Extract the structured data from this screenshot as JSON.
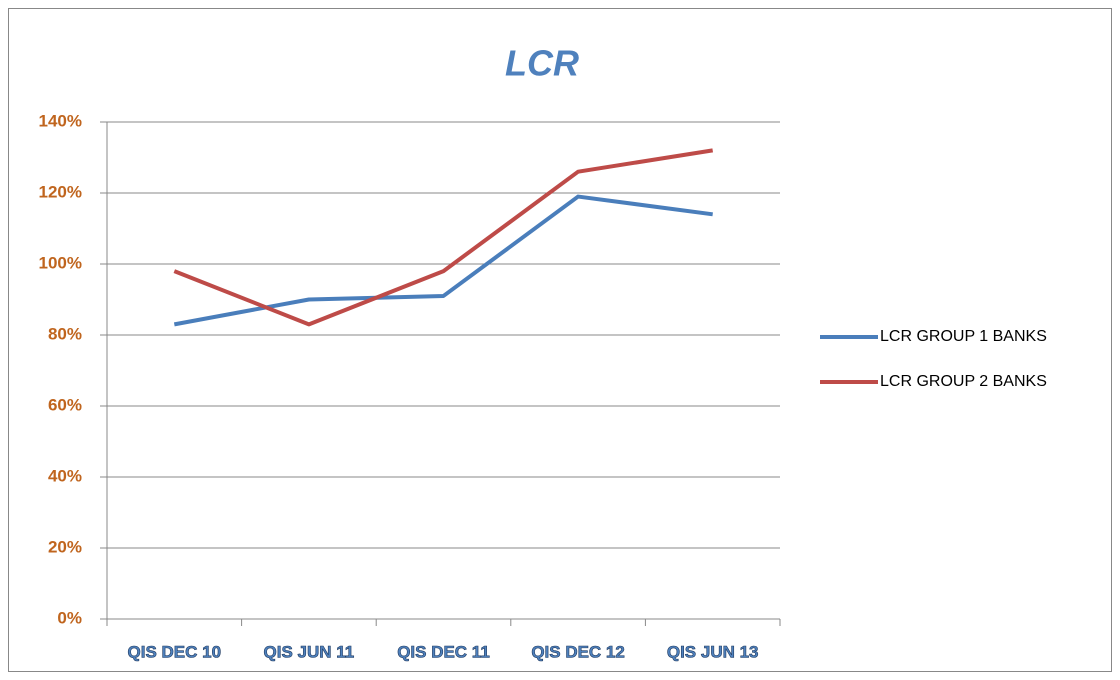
{
  "chart_data": {
    "type": "line",
    "title": "LCR",
    "categories": [
      "QIS DEC 10",
      "QIS JUN 11",
      "QIS DEC 11",
      "QIS DEC 12",
      "QIS JUN 13"
    ],
    "series": [
      {
        "name": "LCR GROUP 1 BANKS",
        "color": "#4a7ebb",
        "values": [
          83,
          90,
          91,
          119,
          114
        ]
      },
      {
        "name": "LCR GROUP 2 BANKS",
        "color": "#be4b48",
        "values": [
          98,
          83,
          98,
          126,
          132
        ]
      }
    ],
    "ylim": [
      0,
      140
    ],
    "yticks": [
      {
        "value": 0,
        "label": "0%"
      },
      {
        "value": 20,
        "label": "20%"
      },
      {
        "value": 40,
        "label": "40%"
      },
      {
        "value": 60,
        "label": "60%"
      },
      {
        "value": 80,
        "label": "80%"
      },
      {
        "value": 100,
        "label": "100%"
      },
      {
        "value": 120,
        "label": "120%"
      },
      {
        "value": 140,
        "label": "140%"
      }
    ],
    "grid": true,
    "legend": "right"
  }
}
